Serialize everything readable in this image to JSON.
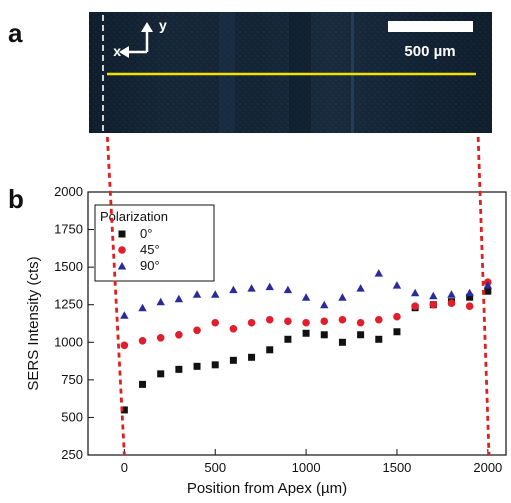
{
  "panel_a": {
    "letter": "a",
    "scale_bar_label": "500 µm",
    "axis_x_label": "x",
    "axis_y_label": "y",
    "line_color": "#f2e200"
  },
  "panel_b": {
    "letter": "b"
  },
  "colors": {
    "series_0": "#111111",
    "series_45": "#e01e2d",
    "series_90": "#2a2a9a",
    "guide": "#e02020"
  },
  "chart_data": {
    "type": "scatter",
    "title": "",
    "xlabel": "Position from Apex (µm)",
    "ylabel": "SERS Intensity (cts)",
    "xlim": [
      -200,
      2100
    ],
    "ylim": [
      250,
      2000
    ],
    "x_ticks": [
      0,
      500,
      1000,
      1500,
      2000
    ],
    "y_ticks": [
      250,
      500,
      750,
      1000,
      1250,
      1500,
      1750,
      2000
    ],
    "legend_title": "Polarization",
    "legend_position": "top-left",
    "grid": false,
    "x": [
      0,
      100,
      200,
      300,
      400,
      500,
      600,
      700,
      800,
      900,
      1000,
      1100,
      1200,
      1300,
      1400,
      1500,
      1600,
      1700,
      1800,
      1900,
      2000
    ],
    "series": [
      {
        "name": "0°",
        "marker": "square",
        "values": [
          550,
          720,
          790,
          820,
          840,
          850,
          880,
          900,
          950,
          1020,
          1060,
          1050,
          1000,
          1050,
          1020,
          1070,
          1230,
          1250,
          1270,
          1300,
          1340
        ]
      },
      {
        "name": "45°",
        "marker": "circle",
        "values": [
          980,
          1010,
          1030,
          1050,
          1080,
          1130,
          1090,
          1130,
          1150,
          1140,
          1130,
          1140,
          1150,
          1130,
          1150,
          1170,
          1240,
          1250,
          1260,
          1240,
          1400
        ]
      },
      {
        "name": "90°",
        "marker": "triangle",
        "values": [
          1180,
          1230,
          1270,
          1290,
          1320,
          1320,
          1350,
          1360,
          1370,
          1350,
          1300,
          1250,
          1300,
          1360,
          1460,
          1380,
          1330,
          1310,
          1320,
          1330,
          1380
        ]
      }
    ]
  }
}
